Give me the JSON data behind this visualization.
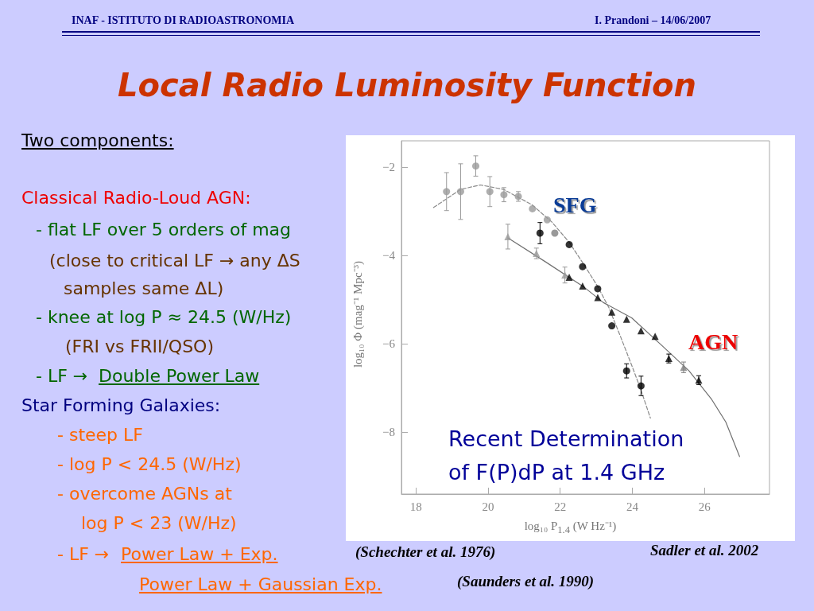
{
  "chart_data": {
    "type": "scatter",
    "title": "Local Radio Luminosity Function",
    "xlabel": "log₁₀ P$_{1.4}$ (W Hz⁻¹)",
    "ylabel": "log₁₀ Φ (mag⁻¹ Mpc⁻³)",
    "xlim": [
      17.6,
      27.8
    ],
    "ylim": [
      -9.4,
      -1.4
    ],
    "xticks": [
      18,
      20,
      22,
      24,
      26
    ],
    "yticks": [
      -8,
      -6,
      -4,
      -2
    ],
    "grid": false,
    "series": [
      {
        "marker": "circle",
        "color": "#9a9a9a",
        "x": [
          18.85,
          19.24,
          19.66,
          20.05,
          20.44,
          20.84,
          21.23,
          21.64
        ],
        "values": [
          -2.55,
          -2.55,
          -1.97,
          -2.55,
          -2.62,
          -2.66,
          -2.94,
          -3.19
        ],
        "errors": [
          0.43,
          0.63,
          0.23,
          0.34,
          0.16,
          0.11,
          null,
          null
        ]
      },
      {
        "marker": "circle",
        "colors": [
          "#000000",
          "#808080",
          "#000000",
          "#000000",
          "#000000",
          "#000000",
          "#000000",
          "#000000"
        ],
        "x": [
          21.44,
          21.85,
          22.25,
          22.62,
          23.04,
          23.43,
          23.84,
          24.24
        ],
        "values": [
          -3.49,
          -3.49,
          -3.75,
          -4.25,
          -4.75,
          -5.59,
          -6.61,
          -6.95
        ],
        "errors": [
          0.24,
          null,
          null,
          null,
          null,
          null,
          0.16,
          0.22
        ]
      },
      {
        "marker": "triangle",
        "color": "#9a9a9a",
        "x": [
          20.55,
          21.34,
          22.13
        ],
        "values": [
          -3.57,
          -3.95,
          -4.44
        ],
        "errors": [
          0.28,
          0.12,
          0.18
        ]
      },
      {
        "marker": "triangle",
        "colors": [
          "#000000",
          "#000000",
          "#000000",
          "#000000",
          "#000000",
          "#000000",
          "#000000",
          "#000000",
          "#808080",
          "#000000"
        ],
        "x": [
          22.25,
          22.62,
          23.04,
          23.43,
          23.84,
          24.24,
          24.63,
          25.01,
          25.42,
          25.84
        ],
        "values": [
          -4.49,
          -4.69,
          -4.95,
          -5.28,
          -5.44,
          -5.7,
          -5.83,
          -6.33,
          -6.53,
          -6.82
        ],
        "errors": [
          null,
          null,
          null,
          null,
          null,
          null,
          null,
          0.1,
          0.12,
          0.1
        ]
      },
      {
        "type": "line",
        "marker": "none",
        "line_style": "dashed",
        "color": "#8a8a8a",
        "x": [
          18.49,
          19.24,
          19.79,
          20.43,
          21.22,
          21.77,
          22.25,
          22.64,
          23.04,
          23.35,
          23.67,
          23.98,
          24.22,
          24.5
        ],
        "values": [
          -2.91,
          -2.5,
          -2.4,
          -2.5,
          -2.85,
          -3.24,
          -3.7,
          -4.18,
          -4.7,
          -5.18,
          -5.83,
          -6.48,
          -7.0,
          -7.68
        ]
      },
      {
        "type": "line",
        "marker": "none",
        "line_style": "solid",
        "color": "#707070",
        "x": [
          20.55,
          21.61,
          22.64,
          23.19,
          23.98,
          24.85,
          25.57,
          26.2,
          26.59,
          26.97
        ],
        "values": [
          -3.6,
          -4.15,
          -4.7,
          -5.06,
          -5.41,
          -6.06,
          -6.61,
          -7.26,
          -7.77,
          -8.55
        ]
      }
    ],
    "annotations": [
      "INAF  -  ISTITUTO DI RADIOASTRONOMIA",
      "I. Prandoni – 14/06/2007",
      "Two components:",
      "Classical Radio-Loud AGN:",
      "- flat LF over 5 orders of mag",
      "(close to critical LF → any ΔS",
      "samples same ΔL)",
      "- knee at log P ≈ 24.5 (W/Hz)",
      "(FRI vs FRII/QSO)",
      "- LF →",
      "Double Power Law",
      "Star Forming Galaxies:",
      "- steep LF",
      "-  log P < 24.5 (W/Hz)",
      "- overcome AGNs at",
      "log P < 23 (W/Hz)",
      "- LF →",
      "Power Law + Exp.",
      "Power Law + Gaussian Exp.",
      "(Schechter et al. 1976)",
      "(Saunders et al. 1990)",
      "Sadler et al. 2002",
      "SFG",
      "AGN",
      "Recent Determination",
      "of F(P)dP at 1.4 GHz"
    ]
  }
}
